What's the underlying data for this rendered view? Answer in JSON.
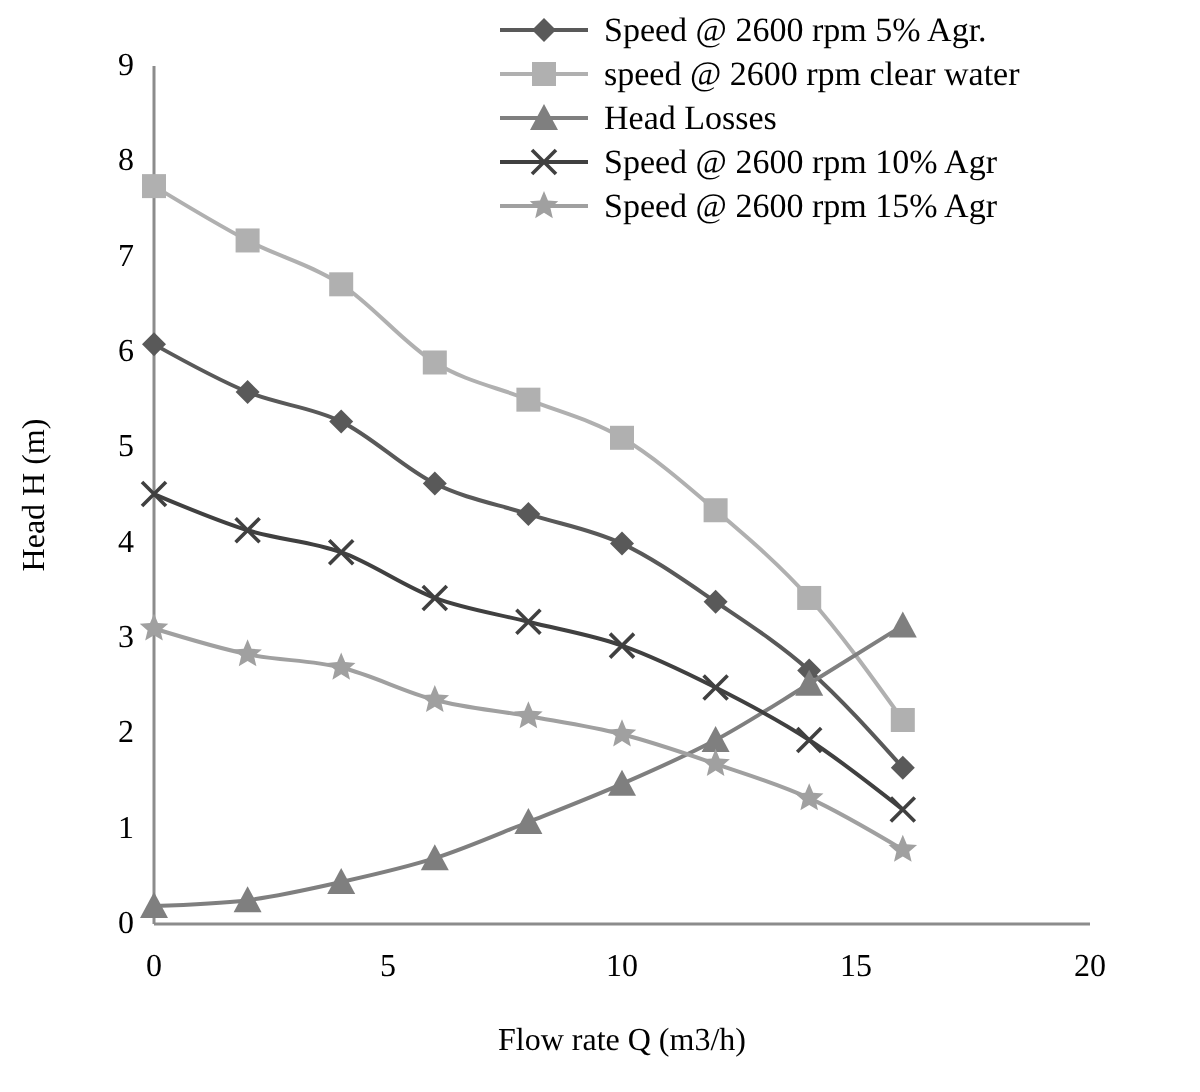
{
  "chart_data": {
    "type": "line",
    "xlabel": "Flow rate Q (m3/h)",
    "ylabel": "Head H (m)",
    "x": [
      0,
      2,
      4,
      6,
      8,
      10,
      12,
      14,
      16
    ],
    "xlim": [
      0,
      20
    ],
    "xticks": [
      0,
      5,
      10,
      15,
      20
    ],
    "ylim": [
      0,
      9
    ],
    "yticks": [
      0,
      1,
      2,
      3,
      4,
      5,
      6,
      7,
      8,
      9
    ],
    "grid": false,
    "legend": "top right",
    "series": [
      {
        "name": "Speed @ 2600 rpm 5% Agr.",
        "color": "#595959",
        "marker": "diamond",
        "values": [
          6.08,
          5.58,
          5.27,
          4.62,
          4.3,
          3.99,
          3.38,
          2.66,
          1.64
        ]
      },
      {
        "name": "speed @ 2600 rpm clear water",
        "color": "#b0b0b0",
        "marker": "square",
        "values": [
          7.74,
          7.17,
          6.71,
          5.89,
          5.5,
          5.1,
          4.34,
          3.42,
          2.14
        ]
      },
      {
        "name": "Head Losses",
        "color": "#7f7f7f",
        "marker": "triangle",
        "values": [
          0.19,
          0.25,
          0.44,
          0.69,
          1.07,
          1.47,
          1.93,
          2.52,
          3.13
        ]
      },
      {
        "name": "Speed @ 2600 rpm 10% Agr",
        "color": "#404040",
        "marker": "cross",
        "values": [
          4.51,
          4.13,
          3.9,
          3.42,
          3.17,
          2.92,
          2.48,
          1.93,
          1.2
        ]
      },
      {
        "name": "Speed @ 2600 rpm 15% Agr",
        "color": "#a0a0a0",
        "marker": "star",
        "values": [
          3.1,
          2.83,
          2.69,
          2.35,
          2.18,
          1.99,
          1.68,
          1.32,
          0.78
        ]
      }
    ]
  }
}
